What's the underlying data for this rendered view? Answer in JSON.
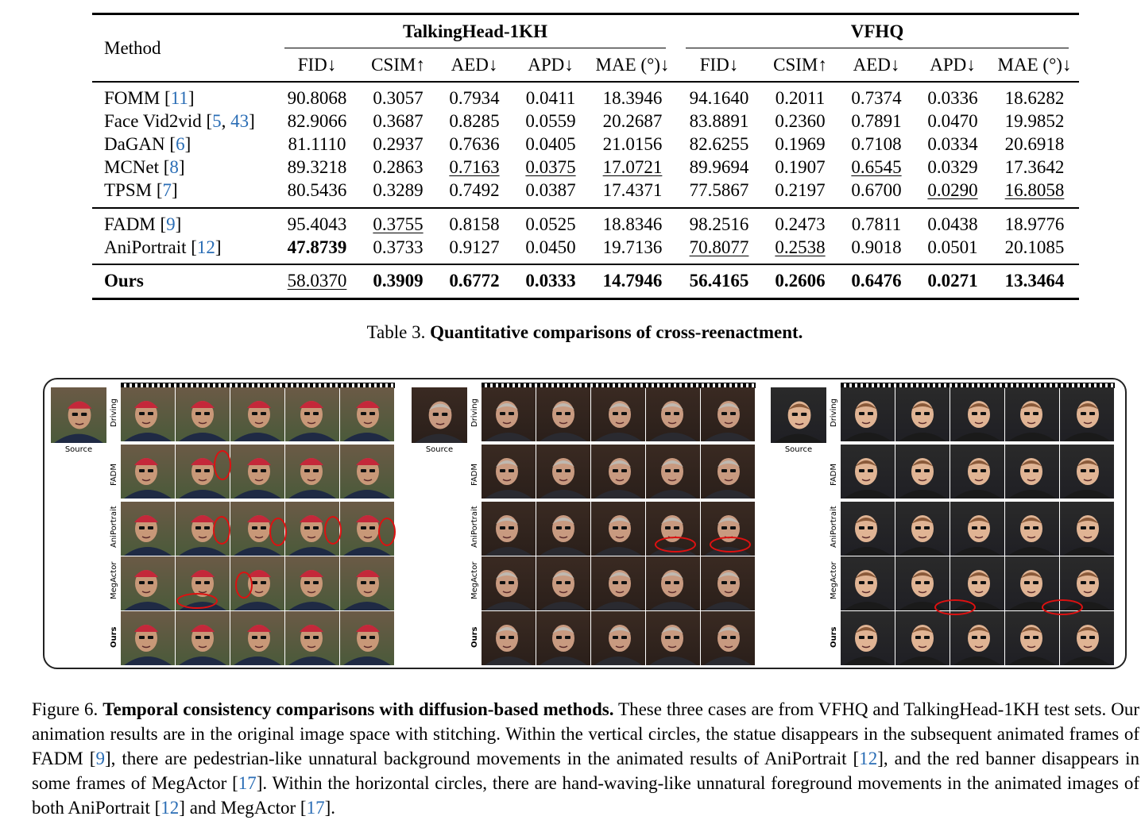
{
  "table": {
    "method_header": "Method",
    "group_headers": [
      "TalkingHead-1KH",
      "VFHQ"
    ],
    "metric_headers": [
      "FID↓",
      "CSIM↑",
      "AED↓",
      "APD↓",
      "MAE (°)↓",
      "FID↓",
      "CSIM↑",
      "AED↓",
      "APD↓",
      "MAE (°)↓"
    ],
    "rows": [
      {
        "method": "FOMM [",
        "cites": [
          "11"
        ],
        "values": [
          "90.8068",
          "0.3057",
          "0.7934",
          "0.0411",
          "18.3946",
          "94.1640",
          "0.2011",
          "0.7374",
          "0.0336",
          "18.6282"
        ],
        "bold": [],
        "underline": []
      },
      {
        "method": "Face Vid2vid [",
        "cites": [
          "5",
          "43"
        ],
        "values": [
          "82.9066",
          "0.3687",
          "0.8285",
          "0.0559",
          "20.2687",
          "83.8891",
          "0.2360",
          "0.7891",
          "0.0470",
          "19.9852"
        ],
        "bold": [],
        "underline": []
      },
      {
        "method": "DaGAN [",
        "cites": [
          "6"
        ],
        "values": [
          "81.1110",
          "0.2937",
          "0.7636",
          "0.0405",
          "21.0156",
          "82.6255",
          "0.1969",
          "0.7108",
          "0.0334",
          "20.6918"
        ],
        "bold": [],
        "underline": []
      },
      {
        "method": "MCNet [",
        "cites": [
          "8"
        ],
        "values": [
          "89.3218",
          "0.2863",
          "0.7163",
          "0.0375",
          "17.0721",
          "89.9694",
          "0.1907",
          "0.6545",
          "0.0329",
          "17.3642"
        ],
        "bold": [],
        "underline": [
          2,
          3,
          4,
          7
        ]
      },
      {
        "method": "TPSM [",
        "cites": [
          "7"
        ],
        "values": [
          "80.5436",
          "0.3289",
          "0.7492",
          "0.0387",
          "17.4371",
          "77.5867",
          "0.2197",
          "0.6700",
          "0.0290",
          "16.8058"
        ],
        "bold": [],
        "underline": [
          8,
          9
        ]
      },
      {
        "method": "FADM [",
        "cites": [
          "9"
        ],
        "values": [
          "95.4043",
          "0.3755",
          "0.8158",
          "0.0525",
          "18.8346",
          "98.2516",
          "0.2473",
          "0.7811",
          "0.0438",
          "18.9776"
        ],
        "bold": [],
        "underline": [
          1
        ]
      },
      {
        "method": "AniPortrait [",
        "cites": [
          "12"
        ],
        "values": [
          "47.8739",
          "0.3733",
          "0.9127",
          "0.0450",
          "19.7136",
          "70.8077",
          "0.2538",
          "0.9018",
          "0.0501",
          "20.1085"
        ],
        "bold": [
          0
        ],
        "underline": [
          5,
          6
        ]
      },
      {
        "method": "Ours",
        "cites": [],
        "values": [
          "58.0370",
          "0.3909",
          "0.6772",
          "0.0333",
          "14.7946",
          "56.4165",
          "0.2606",
          "0.6476",
          "0.0271",
          "13.3464"
        ],
        "bold": [
          1,
          2,
          3,
          4,
          5,
          6,
          7,
          8,
          9
        ],
        "underline": [
          0
        ]
      }
    ],
    "caption_prefix": "Table 3.",
    "caption_title": "Quantitative comparisons of cross-reenactment."
  },
  "figure": {
    "source_label": "Source",
    "row_labels": [
      "Driving",
      "FADM",
      "AniPortrait",
      "MegActor",
      "Ours"
    ],
    "caption": {
      "prefix": "Figure 6.",
      "title": "Temporal consistency comparisons with diffusion-based methods.",
      "s1": " These three cases are from VFHQ and TalkingHead-1KH test sets. Our animation results are in the original image space with stitching. Within the vertical circles, the statue disappears in the subsequent animated frames of FADM [",
      "c1": "9",
      "s2": "], there are pedestrian-like unnatural background movements in the animated results of AniPortrait [",
      "c2": "12",
      "s3": "], and the red banner disappears in some frames of MegActor [",
      "c3": "17",
      "s4": "]. Within the horizontal circles, there are hand-waving-like unnatural foreground movements in the animated images of both AniPortrait [",
      "c4": "12",
      "s5": "] and MegActor [",
      "c5": "17",
      "s6": "]."
    }
  },
  "colors": {
    "citation": "#2a6db5",
    "highlight_circle": "#d11111"
  }
}
